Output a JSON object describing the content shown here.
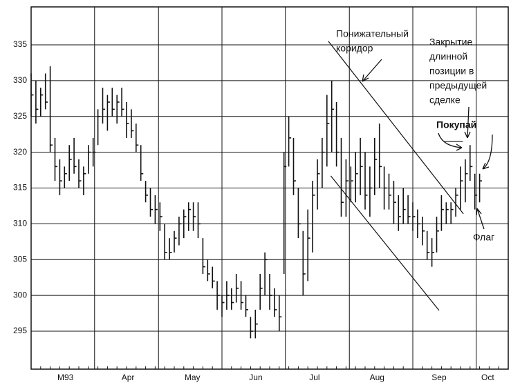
{
  "chart_data": {
    "type": "ohlc",
    "color": "#111111",
    "grid": true,
    "ylim": [
      289.7,
      340.3
    ],
    "yticks": [
      295,
      300,
      305,
      310,
      315,
      320,
      325,
      330,
      335
    ],
    "xlim": [
      0,
      100
    ],
    "xticks": [
      {
        "value": 7.2,
        "label": "M93"
      },
      {
        "value": 20.3,
        "label": "Apr"
      },
      {
        "value": 33.8,
        "label": "May"
      },
      {
        "value": 47.1,
        "label": "Jun"
      },
      {
        "value": 59.4,
        "label": "Jul"
      },
      {
        "value": 72.5,
        "label": "Aug"
      },
      {
        "value": 85.5,
        "label": "Sep"
      },
      {
        "value": 95.7,
        "label": "Oct"
      }
    ],
    "xgrid": [
      13.3,
      26.7,
      40,
      53.3,
      66.7,
      80,
      93.3
    ],
    "x": [
      0,
      1,
      2,
      3,
      4,
      5,
      6,
      7,
      8,
      9,
      10,
      11,
      12,
      13,
      14,
      15,
      16,
      17,
      18,
      19,
      20,
      21,
      22,
      23,
      24,
      25,
      26,
      27,
      28,
      29,
      30,
      31,
      32,
      33,
      34,
      35,
      36,
      37,
      38,
      39,
      40,
      41,
      42,
      43,
      44,
      45,
      46,
      47,
      48,
      49,
      50,
      51,
      52,
      53,
      54,
      55,
      56,
      57,
      58,
      59,
      60,
      61,
      62,
      63,
      64,
      65,
      66,
      67,
      68,
      69,
      70,
      71,
      72,
      73,
      74,
      75,
      76,
      77,
      78,
      79,
      80,
      81,
      82,
      83,
      84,
      85,
      86,
      87,
      88,
      89,
      90,
      91,
      92,
      93,
      94
    ],
    "high": [
      331,
      330,
      329,
      331,
      332,
      322,
      319,
      318,
      321,
      322,
      319,
      318,
      321,
      322,
      326,
      329,
      328,
      329,
      328,
      329,
      327,
      326,
      324,
      321,
      316,
      315,
      314,
      313,
      310,
      308,
      309,
      311,
      312,
      313,
      313,
      313,
      308,
      305,
      304,
      302,
      300,
      302,
      301,
      303,
      302,
      300,
      297,
      298,
      303,
      306,
      303,
      301,
      300,
      320,
      325,
      322,
      315,
      309,
      312,
      316,
      319,
      322,
      328,
      330,
      327,
      322,
      319,
      318,
      320,
      322,
      320,
      318,
      322,
      324,
      318,
      317,
      316,
      314,
      315,
      314,
      313,
      312,
      311,
      309,
      308,
      311,
      314,
      313,
      313,
      315,
      318,
      319,
      321,
      317,
      317
    ],
    "low": [
      325,
      324,
      325,
      326,
      320,
      316,
      314,
      315,
      316,
      317,
      315,
      314,
      317,
      318,
      321,
      324,
      323,
      325,
      324,
      325,
      322,
      322,
      320,
      316,
      313,
      311,
      310,
      309,
      305,
      305,
      306,
      307,
      308,
      309,
      309,
      308,
      303,
      302,
      301,
      298,
      297,
      298,
      298,
      299,
      298,
      297,
      294,
      294,
      298,
      300,
      298,
      297,
      295,
      303,
      318,
      314,
      308,
      300,
      302,
      306,
      312,
      315,
      318,
      320,
      318,
      311,
      311,
      313,
      313,
      314,
      312,
      311,
      314,
      315,
      312,
      312,
      310,
      309,
      310,
      310,
      309,
      308,
      307,
      305,
      304,
      306,
      309,
      310,
      310,
      311,
      312,
      313,
      316,
      312,
      313
    ],
    "close": [
      328,
      326,
      328,
      327,
      321,
      318,
      316,
      317,
      319,
      318,
      316,
      317,
      320,
      320,
      325,
      326,
      327,
      326,
      327,
      326,
      324,
      323,
      321,
      317,
      314,
      312,
      312,
      311,
      306,
      306,
      308,
      310,
      311,
      312,
      311,
      310,
      304,
      303,
      302,
      300,
      299,
      300,
      299,
      301,
      299,
      298,
      295,
      296,
      301,
      305,
      300,
      298,
      297,
      318,
      322,
      316,
      310,
      303,
      308,
      314,
      317,
      320,
      324,
      326,
      320,
      313,
      316,
      316,
      317,
      318,
      314,
      315,
      319,
      318,
      315,
      314,
      313,
      311,
      312,
      311,
      311,
      310,
      309,
      306,
      306,
      309,
      312,
      312,
      312,
      314,
      316,
      317,
      318,
      314,
      316
    ],
    "trendlines": [
      {
        "x": [
          62.3,
          90.6
        ],
        "y": [
          335.5,
          311.4
        ]
      },
      {
        "x": [
          62.8,
          85.5
        ],
        "y": [
          316.7,
          297.9
        ]
      },
      {
        "x": [
          86.5,
          90.5
        ],
        "y": [
          321.5,
          321.5
        ]
      }
    ],
    "annotations": [
      {
        "lines": [
          "Понижательный",
          "коридор"
        ]
      },
      {
        "lines": [
          "Закрытие",
          "длинной",
          "позиции в",
          "предыдущей",
          "сделке"
        ]
      },
      {
        "lines": [
          "Покупай"
        ]
      },
      {
        "lines": [
          "Флаг"
        ]
      }
    ]
  }
}
